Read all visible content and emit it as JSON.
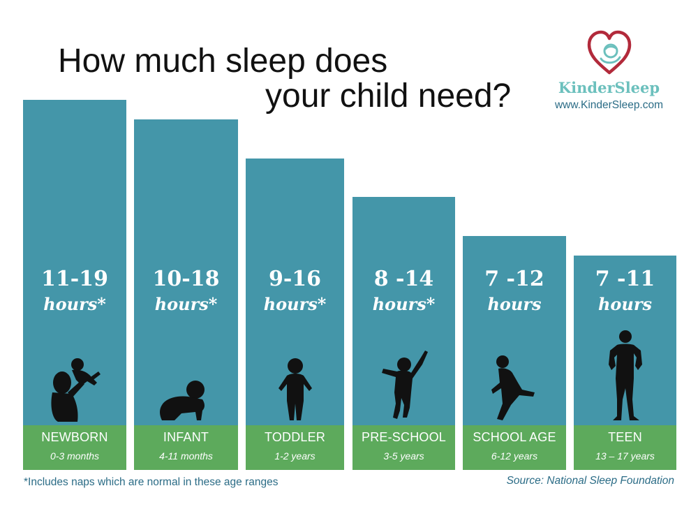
{
  "title": {
    "line1": "How much sleep does",
    "line2": "your child need?"
  },
  "logo": {
    "name": "KinderSleep",
    "url": "www.KinderSleep.com",
    "icon": "heart-baby-logo",
    "heart_color": "#b22a3b",
    "name_color": "#6cc0bd"
  },
  "chart_data": {
    "type": "bar",
    "title": "How much sleep does your child need?",
    "xlabel": "",
    "ylabel": "",
    "grid": false,
    "legend": "none",
    "categories": [
      "NEWBORN",
      "INFANT",
      "TODDLER",
      "PRE-SCHOOL",
      "SCHOOL AGE",
      "TEEN"
    ],
    "age_ranges": [
      "0-3 months",
      "4-11 months",
      "1-2 years",
      "3-5 years",
      "6-12 years",
      "13 – 17 years"
    ],
    "value_labels": [
      "11-19",
      "10-18",
      "9-16",
      "8 -14",
      "7 -12",
      "7 -11"
    ],
    "unit_labels": [
      "hours*",
      "hours*",
      "hours*",
      "hours*",
      "hours",
      "hours"
    ],
    "ranges": [
      [
        11,
        19
      ],
      [
        10,
        18
      ],
      [
        9,
        16
      ],
      [
        8,
        14
      ],
      [
        7,
        12
      ],
      [
        7,
        11
      ]
    ],
    "values": [
      19,
      18,
      16,
      14,
      12,
      11
    ],
    "ylim": [
      0,
      19
    ],
    "bar_color": "#4496a9",
    "base_color": "#5daa5c",
    "figures": [
      "parent-lifting-baby-icon",
      "crawling-infant-icon",
      "walking-toddler-icon",
      "jumping-child-icon",
      "running-child-icon",
      "standing-teen-icon"
    ]
  },
  "footnote": "*Includes naps which are normal in these age ranges",
  "source": "Source: National Sleep Foundation"
}
